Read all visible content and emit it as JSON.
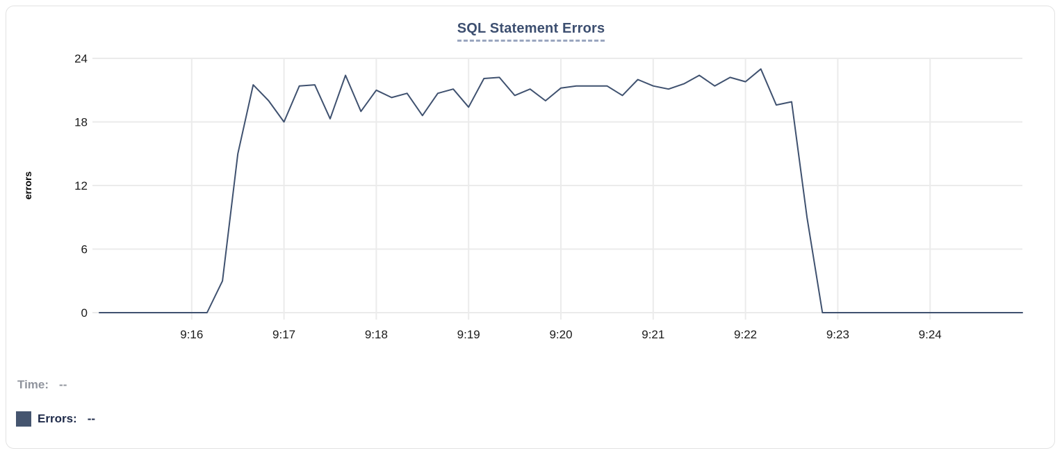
{
  "card": {
    "title": "SQL Statement Errors"
  },
  "tooltip_readout": {
    "time_label": "Time:",
    "time_value": "--",
    "errors_label": "Errors:",
    "errors_value": "--"
  },
  "colors": {
    "line": "#3f516f",
    "legend_swatch": "#45556f",
    "grid": "#ebebeb",
    "tick_text": "#1a1a1a",
    "title_text": "#3d4f70",
    "title_underline": "#9aa6bf",
    "time_text": "#90949d",
    "errors_text": "#1e2a49",
    "card_border": "#e2e2e2"
  },
  "chart_data": {
    "type": "line",
    "title": "SQL Statement Errors",
    "xlabel": "",
    "ylabel": "errors",
    "ylim": [
      0,
      24
    ],
    "y_ticks": [
      0,
      6,
      12,
      18,
      24
    ],
    "x_tick_labels": [
      "9:16",
      "9:17",
      "9:18",
      "9:19",
      "9:20",
      "9:21",
      "9:22",
      "9:23",
      "9:24"
    ],
    "x_tick_indices": [
      6,
      12,
      18,
      24,
      30,
      36,
      42,
      48,
      54
    ],
    "x_start": "9:15:00",
    "x_interval_seconds": 10,
    "grid": true,
    "legend_position": "bottom-left",
    "x": [
      "9:15:00",
      "9:15:10",
      "9:15:20",
      "9:15:30",
      "9:15:40",
      "9:15:50",
      "9:16:00",
      "9:16:10",
      "9:16:20",
      "9:16:30",
      "9:16:40",
      "9:16:50",
      "9:17:00",
      "9:17:10",
      "9:17:20",
      "9:17:30",
      "9:17:40",
      "9:17:50",
      "9:18:00",
      "9:18:10",
      "9:18:20",
      "9:18:30",
      "9:18:40",
      "9:18:50",
      "9:19:00",
      "9:19:10",
      "9:19:20",
      "9:19:30",
      "9:19:40",
      "9:19:50",
      "9:20:00",
      "9:20:10",
      "9:20:20",
      "9:20:30",
      "9:20:40",
      "9:20:50",
      "9:21:00",
      "9:21:10",
      "9:21:20",
      "9:21:30",
      "9:21:40",
      "9:21:50",
      "9:22:00",
      "9:22:10",
      "9:22:20",
      "9:22:30",
      "9:22:40",
      "9:22:50",
      "9:23:00",
      "9:23:10",
      "9:23:20",
      "9:23:30",
      "9:23:40",
      "9:23:50",
      "9:24:00",
      "9:24:10",
      "9:24:20",
      "9:24:30",
      "9:24:40",
      "9:24:50",
      "9:25:00"
    ],
    "series": [
      {
        "name": "Errors",
        "values": [
          0,
          0,
          0,
          0,
          0,
          0,
          0,
          0,
          3,
          15,
          21.5,
          20,
          18,
          21.4,
          21.5,
          18.3,
          22.4,
          19,
          21,
          20.3,
          20.7,
          18.6,
          20.7,
          21.1,
          19.4,
          22.1,
          22.2,
          20.5,
          21.1,
          20,
          21.2,
          21.4,
          21.4,
          21.4,
          20.5,
          22,
          21.4,
          21.1,
          21.6,
          22.4,
          21.4,
          22.2,
          21.8,
          23,
          19.6,
          19.9,
          9,
          0,
          0,
          0,
          0,
          0,
          0,
          0,
          0,
          0,
          0,
          0,
          0,
          0,
          0
        ]
      }
    ]
  }
}
